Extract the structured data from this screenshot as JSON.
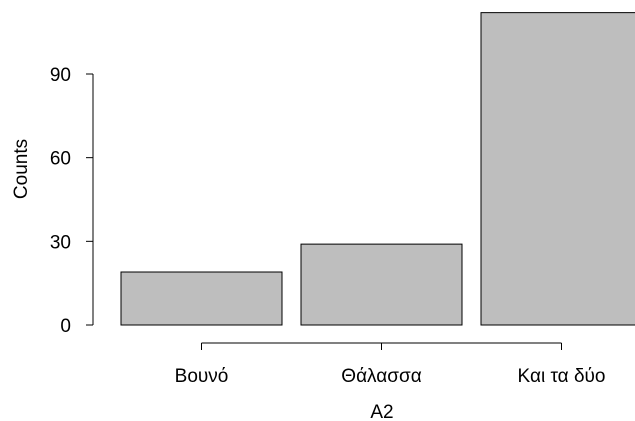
{
  "chart_data": {
    "type": "bar",
    "title": "",
    "xlabel": "A2",
    "ylabel": "Counts",
    "categories": [
      "Βουνό",
      "Θάλασσα",
      "Και τα δύο"
    ],
    "values": [
      19,
      29,
      112
    ],
    "yticks": [
      0,
      30,
      60,
      90
    ],
    "ylim": [
      0,
      112
    ],
    "grid": false,
    "legend": "none",
    "bar_color": "#bebebe",
    "bar_edge_color": "#000000"
  }
}
